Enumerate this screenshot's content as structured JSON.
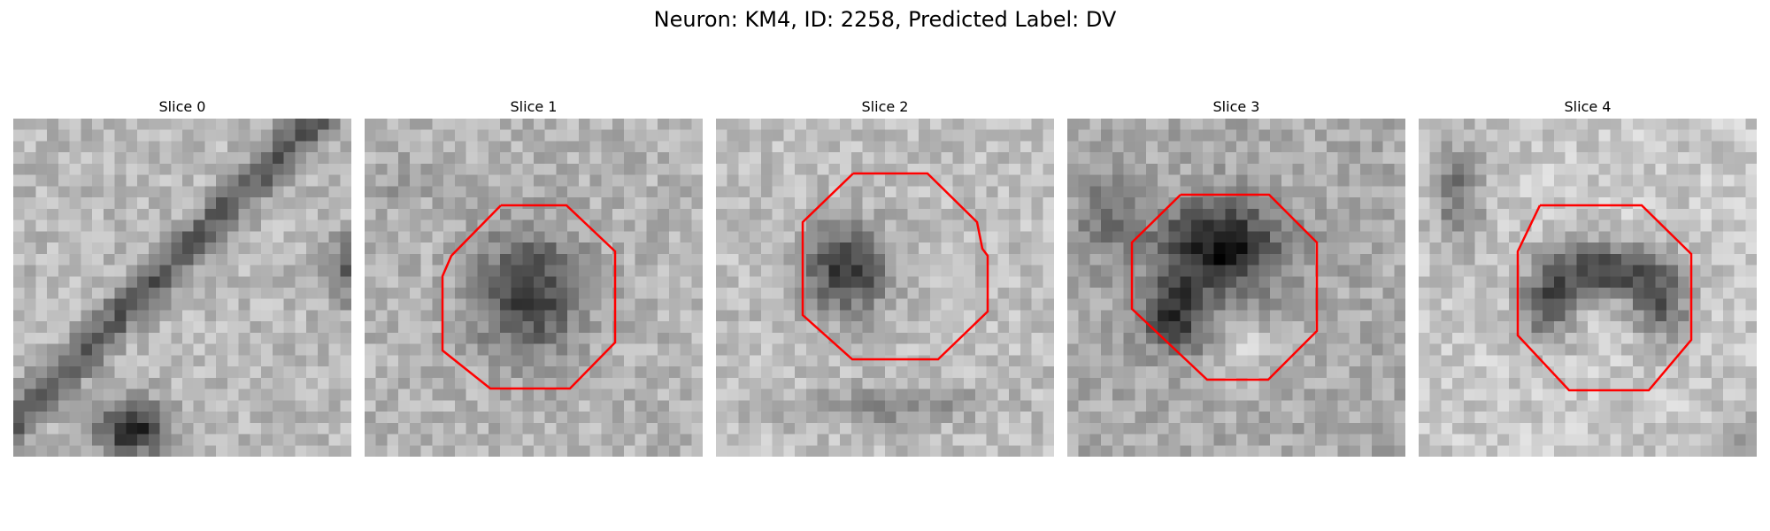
{
  "figure": {
    "title": "Neuron: KM4, ID: 2258, Predicted Label: DV"
  },
  "panels": [
    {
      "title": "Slice 0",
      "has_contour": false
    },
    {
      "title": "Slice 1",
      "has_contour": true
    },
    {
      "title": "Slice 2",
      "has_contour": true
    },
    {
      "title": "Slice 3",
      "has_contour": true
    },
    {
      "title": "Slice 4",
      "has_contour": true
    }
  ],
  "colors": {
    "contour": "#ff0000",
    "background": "#ffffff",
    "colormap": "grayscale"
  }
}
